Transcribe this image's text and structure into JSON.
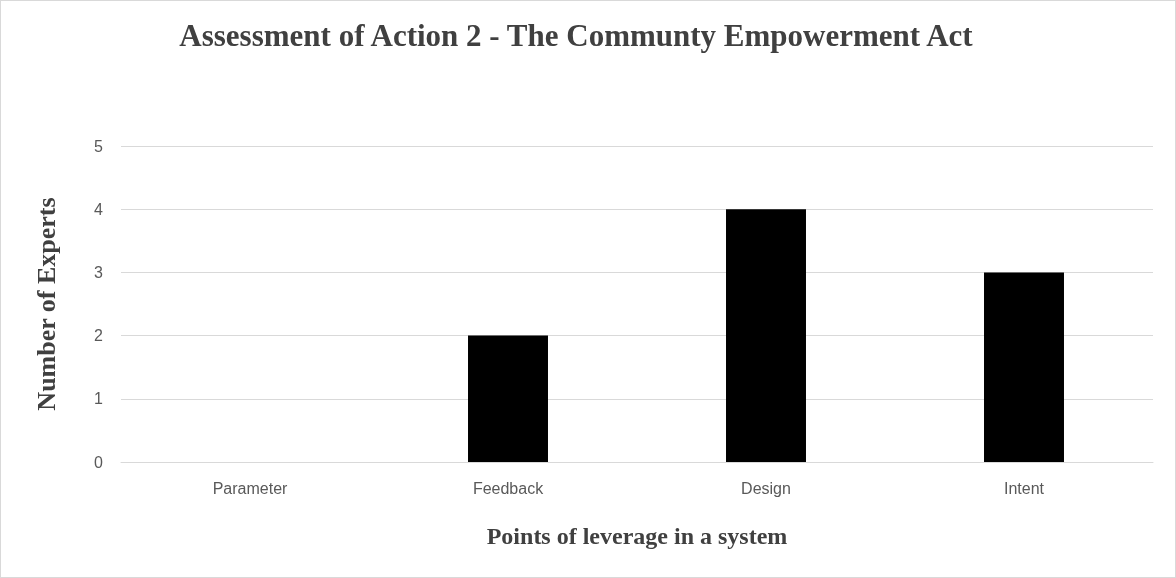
{
  "chart_data": {
    "type": "bar",
    "title": "Assessment of Action 2 - The Communty Empowerment Act",
    "xlabel": "Points of leverage in a system",
    "ylabel": "Number of Experts",
    "categories": [
      "Parameter",
      "Feedback",
      "Design",
      "Intent"
    ],
    "values": [
      0,
      2,
      4,
      3
    ],
    "color": "#000000",
    "ylim": [
      0,
      5
    ],
    "yticks": [
      0,
      1,
      2,
      3,
      4,
      5
    ],
    "grid": "y"
  }
}
